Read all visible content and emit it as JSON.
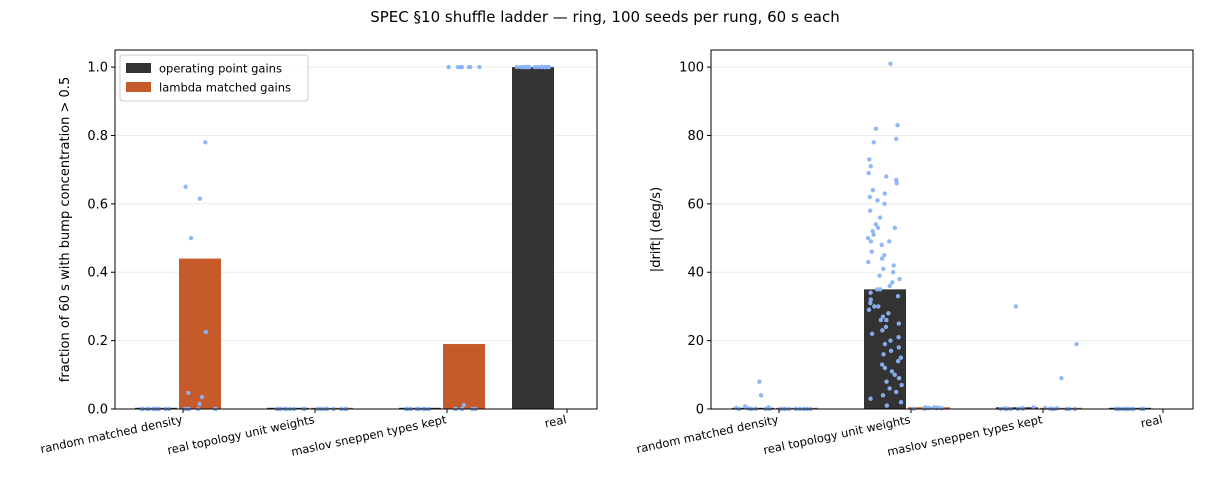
{
  "figure_title": "SPEC §10 shuffle ladder — ring, 100 seeds per rung, 60 s each",
  "colors": {
    "operating": "#333333",
    "lambda": "#c65a2a",
    "points": "#8ab4f8",
    "grid": "#ebebeb"
  },
  "chart_data": [
    {
      "type": "bar",
      "categories": [
        "random matched density",
        "real topology unit weights",
        "maslov sneppen types kept",
        "real"
      ],
      "ylabel": "fraction of 60 s with bump concentration > 0.5",
      "ylim": [
        0,
        1.05
      ],
      "yticks": [
        "0.0",
        "0.2",
        "0.4",
        "0.6",
        "0.8",
        "1.0"
      ],
      "legend_position": "upper-left",
      "series": [
        {
          "name": "operating point gains",
          "values": [
            0.0,
            0.0,
            0.0,
            1.0
          ],
          "color": "operating"
        },
        {
          "name": "lambda matched gains",
          "values": [
            0.44,
            0.0,
            0.19,
            null
          ],
          "color": "lambda"
        }
      ],
      "points": [
        {
          "series": 0,
          "category": 0,
          "values": [
            0,
            0,
            0,
            0,
            0,
            0,
            0,
            0,
            0,
            0,
            0,
            0
          ]
        },
        {
          "series": 1,
          "category": 0,
          "values": [
            0.78,
            0.65,
            0.615,
            0.5,
            0.225,
            0.047,
            0.035,
            0.015,
            0,
            0,
            0,
            0,
            0,
            0
          ]
        },
        {
          "series": 0,
          "category": 1,
          "values": [
            0,
            0,
            0,
            0,
            0,
            0,
            0,
            0,
            0,
            0
          ]
        },
        {
          "series": 1,
          "category": 1,
          "values": [
            0,
            0,
            0,
            0,
            0,
            0,
            0,
            0,
            0,
            0
          ]
        },
        {
          "series": 0,
          "category": 2,
          "values": [
            0,
            0,
            0,
            0,
            0,
            0,
            0,
            0,
            0,
            0
          ]
        },
        {
          "series": 1,
          "category": 2,
          "values": [
            1,
            1,
            1,
            1,
            1,
            1,
            1,
            0.012,
            0,
            0,
            0,
            0,
            0,
            0,
            0
          ]
        },
        {
          "series": 0,
          "category": 3,
          "values": [
            1,
            1,
            1,
            1,
            1,
            1,
            1,
            1,
            1,
            1,
            1,
            1,
            1,
            1,
            1
          ]
        }
      ]
    },
    {
      "type": "bar",
      "categories": [
        "random matched density",
        "real topology unit weights",
        "maslov sneppen types kept",
        "real"
      ],
      "ylabel": "|drift| (deg/s)",
      "ylim": [
        0,
        105
      ],
      "yticks": [
        "0",
        "20",
        "40",
        "60",
        "80",
        "100"
      ],
      "series": [
        {
          "name": "operating point gains",
          "values": [
            0.3,
            35,
            0.5,
            0.0
          ],
          "color": "operating"
        },
        {
          "name": "lambda matched gains",
          "values": [
            0.0,
            0.5,
            0.3,
            null
          ],
          "color": "lambda"
        }
      ],
      "points": [
        {
          "series": 0,
          "category": 0,
          "values": [
            8,
            4,
            0.8,
            0.5,
            0.3,
            0.2,
            0.1,
            0,
            0,
            0,
            0,
            0
          ]
        },
        {
          "series": 1,
          "category": 0,
          "values": [
            0,
            0,
            0,
            0,
            0,
            0,
            0,
            0,
            0,
            0
          ]
        },
        {
          "series": 0,
          "category": 1,
          "values": [
            101,
            83,
            82,
            79,
            78,
            73,
            71,
            69,
            68,
            67,
            66,
            64,
            63,
            62,
            61,
            60,
            58,
            56,
            54,
            53,
            53,
            52,
            51,
            50,
            49,
            49,
            48,
            46,
            45,
            44,
            43,
            42,
            41,
            40,
            39,
            38,
            37,
            36,
            35,
            35,
            34,
            33,
            32,
            31,
            30,
            30,
            29,
            28,
            27,
            26,
            26,
            25,
            24,
            23,
            22,
            21,
            20,
            19,
            18,
            17,
            16,
            15,
            14,
            13,
            12,
            11,
            10,
            9,
            8,
            7,
            6,
            5,
            4,
            3,
            2,
            1
          ]
        },
        {
          "series": 1,
          "category": 1,
          "values": [
            0.5,
            0.5,
            0.4,
            0.4,
            0.3,
            0.3,
            0.2,
            0.2,
            0.1,
            0.1
          ]
        },
        {
          "series": 0,
          "category": 2,
          "values": [
            30,
            0.5,
            0.3,
            0.2,
            0.1,
            0,
            0,
            0,
            0,
            0
          ]
        },
        {
          "series": 1,
          "category": 2,
          "values": [
            19,
            9,
            0.3,
            0.2,
            0.1,
            0,
            0,
            0,
            0,
            0
          ]
        },
        {
          "series": 0,
          "category": 3,
          "values": [
            0,
            0,
            0,
            0,
            0,
            0,
            0,
            0,
            0,
            0,
            0,
            0
          ]
        }
      ]
    }
  ]
}
